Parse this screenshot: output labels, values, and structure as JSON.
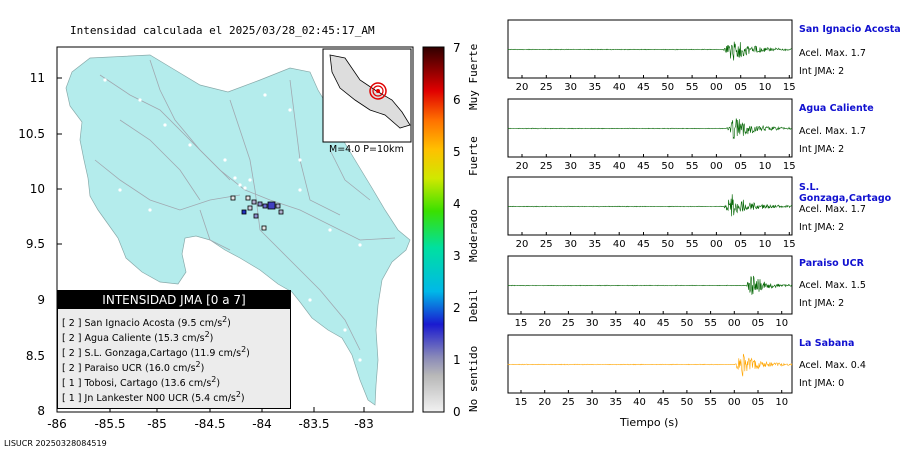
{
  "title": "Intensidad calculada el 2025/03/28_02:45:17_AM",
  "map": {
    "y_ticks": [
      "11",
      "10.5",
      "10",
      "9.5",
      "9",
      "8.5",
      "8"
    ],
    "x_ticks": [
      "-86",
      "-85.5",
      "-85",
      "-84.5",
      "-84",
      "-83.5",
      "-83"
    ],
    "inset_label": "M=4.0 P=10km"
  },
  "colorbar": {
    "ticks": [
      "0",
      "1",
      "2",
      "3",
      "4",
      "5",
      "6",
      "7"
    ],
    "categories": [
      "No sentido",
      "Debil",
      "Moderado",
      "Fuerte",
      "Muy Fuerte"
    ]
  },
  "legend": {
    "title": "INTENSIDAD JMA [0 a 7]",
    "rows": [
      {
        "level": "[ 2 ]",
        "text": "San Ignacio Acosta (9.5 cm/s",
        "sup": "2",
        "close": ")"
      },
      {
        "level": "[ 2 ]",
        "text": "Agua Caliente (15.3 cm/s",
        "sup": "2",
        "close": ")"
      },
      {
        "level": "[ 2 ]",
        "text": "S.L. Gonzaga,Cartago (11.9 cm/s",
        "sup": "2",
        "close": ")"
      },
      {
        "level": "[ 2 ]",
        "text": "Paraiso UCR (16.0 cm/s",
        "sup": "2",
        "close": ")"
      },
      {
        "level": "[ 1 ]",
        "text": "Tobosi, Cartago (13.6 cm/s",
        "sup": "2",
        "close": ")"
      },
      {
        "level": "[ 1 ]",
        "text": "Jn Lankester N00 UCR (5.4 cm/s",
        "sup": "2",
        "close": ")"
      }
    ]
  },
  "footer": "LISUCR 20250328084519",
  "stations": [
    {
      "name": "San Ignacio Acosta",
      "acel": "Acel. Max. 1.7",
      "int": "Int JMA: 2",
      "ticks": [
        "20",
        "25",
        "30",
        "35",
        "40",
        "45",
        "50",
        "55",
        "00",
        "05",
        "10",
        "15"
      ],
      "color": "#006400"
    },
    {
      "name": "Agua Caliente",
      "acel": "Acel. Max. 1.7",
      "int": "Int JMA: 2",
      "ticks": [
        "20",
        "25",
        "30",
        "35",
        "40",
        "45",
        "50",
        "55",
        "00",
        "05",
        "10",
        "15"
      ],
      "color": "#006400"
    },
    {
      "name": "S.L. Gonzaga,Cartago",
      "acel": "Acel. Max. 1.7",
      "int": "Int JMA: 2",
      "ticks": [
        "20",
        "25",
        "30",
        "35",
        "40",
        "45",
        "50",
        "55",
        "00",
        "05",
        "10",
        "15"
      ],
      "color": "#006400"
    },
    {
      "name": "Paraiso UCR",
      "acel": "Acel. Max. 1.5",
      "int": "Int JMA: 2",
      "ticks": [
        "15",
        "20",
        "25",
        "30",
        "35",
        "40",
        "45",
        "50",
        "55",
        "00",
        "05",
        "10"
      ],
      "color": "#006400"
    },
    {
      "name": "La Sabana",
      "acel": "Acel. Max. 0.4",
      "int": "Int JMA: 0",
      "ticks": [
        "15",
        "20",
        "25",
        "30",
        "35",
        "40",
        "45",
        "50",
        "55",
        "00",
        "05",
        "10"
      ],
      "color": "#ffa500"
    }
  ],
  "xlabel": "Tiempo (s)"
}
